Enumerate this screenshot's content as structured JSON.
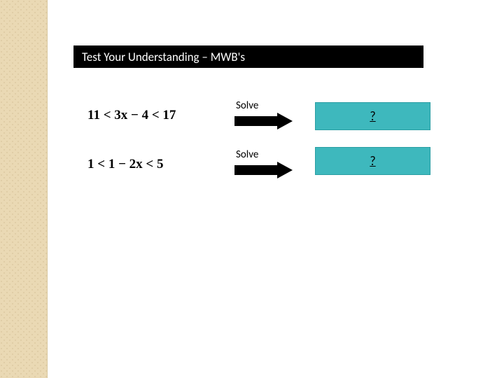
{
  "sidebar": {
    "bg_color": "#ead9b4",
    "pattern_color": "rgba(210,190,150,0.6)"
  },
  "title": {
    "text": "Test Your Understanding – MWB's",
    "bg_color": "#000000",
    "text_color": "#ffffff",
    "font_size": 17
  },
  "rows": [
    {
      "expression": "11 < 3x − 4 < 17",
      "arrow_label": "Solve",
      "answer": "?",
      "answer_bg": "#3eb8bd",
      "answer_border": "#2a9ea3"
    },
    {
      "expression": "1 < 1 − 2x < 5",
      "arrow_label": "Solve",
      "answer": "?",
      "answer_bg": "#3eb8bd",
      "answer_border": "#2a9ea3"
    }
  ],
  "arrow": {
    "color": "#000000"
  }
}
